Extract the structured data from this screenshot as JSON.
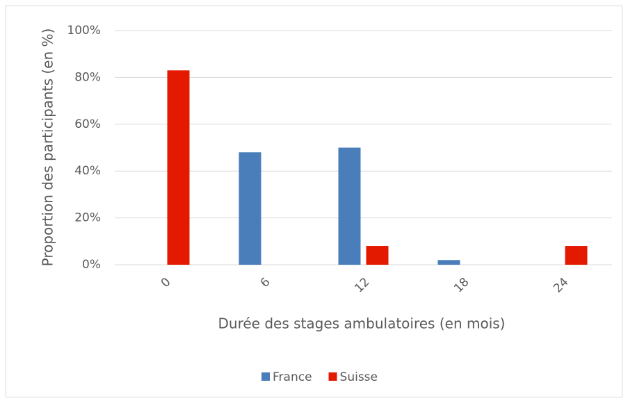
{
  "chart_data": {
    "type": "bar",
    "x_label": "Durée des stages ambulatoires (en mois)",
    "y_label": "Proportion des participants (en %)",
    "categories": [
      "0",
      "6",
      "12",
      "18",
      "24"
    ],
    "series": [
      {
        "name": "France",
        "color": "#4a7ebb",
        "values": [
          0,
          48,
          50,
          2,
          0
        ]
      },
      {
        "name": "Suisse",
        "color": "#e31a00",
        "values": [
          83,
          0,
          8,
          0,
          8
        ]
      }
    ],
    "ylim": [
      0,
      100
    ],
    "yticks": [
      {
        "value": 0,
        "label": "0%"
      },
      {
        "value": 20,
        "label": "20%"
      },
      {
        "value": 40,
        "label": "40%"
      },
      {
        "value": 60,
        "label": "60%"
      },
      {
        "value": 80,
        "label": "80%"
      },
      {
        "value": 100,
        "label": "100%"
      }
    ],
    "grid": true,
    "legend": "bottom"
  }
}
